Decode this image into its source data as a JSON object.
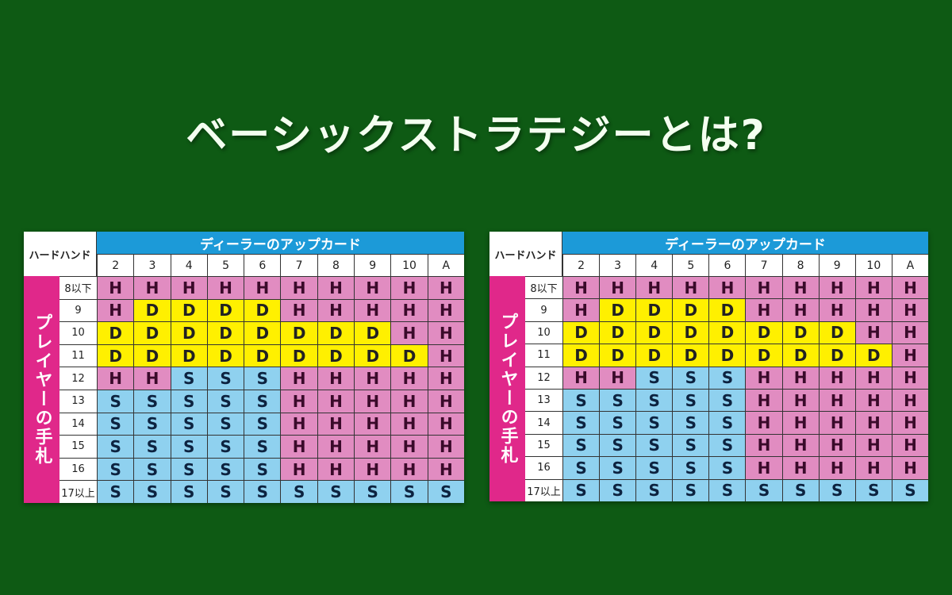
{
  "title": "ベーシックストラテジーとは?",
  "colors": {
    "background": "#0e5a14",
    "hit": "#e18cc1",
    "double": "#fff000",
    "stand": "#8fd1ef",
    "header": "#1c9ad8",
    "side": "#e0288a"
  },
  "tables": [
    {
      "corner": "ハードハンド",
      "dealer_header": "ディーラーのアップカード",
      "side_label": "プレイヤーの手札",
      "columns": [
        "2",
        "3",
        "4",
        "5",
        "6",
        "7",
        "8",
        "9",
        "10",
        "A"
      ],
      "rows": [
        {
          "label": "8以下",
          "cells": [
            "H",
            "H",
            "H",
            "H",
            "H",
            "H",
            "H",
            "H",
            "H",
            "H"
          ]
        },
        {
          "label": "9",
          "cells": [
            "H",
            "D",
            "D",
            "D",
            "D",
            "H",
            "H",
            "H",
            "H",
            "H"
          ]
        },
        {
          "label": "10",
          "cells": [
            "D",
            "D",
            "D",
            "D",
            "D",
            "D",
            "D",
            "D",
            "H",
            "H"
          ]
        },
        {
          "label": "11",
          "cells": [
            "D",
            "D",
            "D",
            "D",
            "D",
            "D",
            "D",
            "D",
            "D",
            "H"
          ]
        },
        {
          "label": "12",
          "cells": [
            "H",
            "H",
            "S",
            "S",
            "S",
            "H",
            "H",
            "H",
            "H",
            "H"
          ]
        },
        {
          "label": "13",
          "cells": [
            "S",
            "S",
            "S",
            "S",
            "S",
            "H",
            "H",
            "H",
            "H",
            "H"
          ]
        },
        {
          "label": "14",
          "cells": [
            "S",
            "S",
            "S",
            "S",
            "S",
            "H",
            "H",
            "H",
            "H",
            "H"
          ]
        },
        {
          "label": "15",
          "cells": [
            "S",
            "S",
            "S",
            "S",
            "S",
            "H",
            "H",
            "H",
            "H",
            "H"
          ]
        },
        {
          "label": "16",
          "cells": [
            "S",
            "S",
            "S",
            "S",
            "S",
            "H",
            "H",
            "H",
            "H",
            "H"
          ]
        },
        {
          "label": "17以上",
          "cells": [
            "S",
            "S",
            "S",
            "S",
            "S",
            "S",
            "S",
            "S",
            "S",
            "S"
          ]
        }
      ]
    },
    {
      "corner": "ハードハンド",
      "dealer_header": "ディーラーのアップカード",
      "side_label": "プレイヤーの手札",
      "columns": [
        "2",
        "3",
        "4",
        "5",
        "6",
        "7",
        "8",
        "9",
        "10",
        "A"
      ],
      "rows": [
        {
          "label": "8以下",
          "cells": [
            "H",
            "H",
            "H",
            "H",
            "H",
            "H",
            "H",
            "H",
            "H",
            "H"
          ]
        },
        {
          "label": "9",
          "cells": [
            "H",
            "D",
            "D",
            "D",
            "D",
            "H",
            "H",
            "H",
            "H",
            "H"
          ]
        },
        {
          "label": "10",
          "cells": [
            "D",
            "D",
            "D",
            "D",
            "D",
            "D",
            "D",
            "D",
            "H",
            "H"
          ]
        },
        {
          "label": "11",
          "cells": [
            "D",
            "D",
            "D",
            "D",
            "D",
            "D",
            "D",
            "D",
            "D",
            "H"
          ]
        },
        {
          "label": "12",
          "cells": [
            "H",
            "H",
            "S",
            "S",
            "S",
            "H",
            "H",
            "H",
            "H",
            "H"
          ]
        },
        {
          "label": "13",
          "cells": [
            "S",
            "S",
            "S",
            "S",
            "S",
            "H",
            "H",
            "H",
            "H",
            "H"
          ]
        },
        {
          "label": "14",
          "cells": [
            "S",
            "S",
            "S",
            "S",
            "S",
            "H",
            "H",
            "H",
            "H",
            "H"
          ]
        },
        {
          "label": "15",
          "cells": [
            "S",
            "S",
            "S",
            "S",
            "S",
            "H",
            "H",
            "H",
            "H",
            "H"
          ]
        },
        {
          "label": "16",
          "cells": [
            "S",
            "S",
            "S",
            "S",
            "S",
            "H",
            "H",
            "H",
            "H",
            "H"
          ]
        },
        {
          "label": "17以上",
          "cells": [
            "S",
            "S",
            "S",
            "S",
            "S",
            "S",
            "S",
            "S",
            "S",
            "S"
          ]
        }
      ]
    }
  ]
}
